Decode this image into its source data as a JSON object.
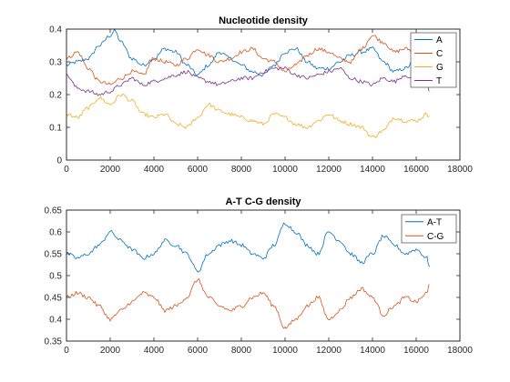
{
  "chart_data": [
    {
      "type": "line",
      "title": "Nucleotide density",
      "xlabel": "",
      "ylabel": "",
      "xlim": [
        0,
        18000
      ],
      "ylim": [
        0,
        0.4
      ],
      "x_ticks": [
        0,
        2000,
        4000,
        6000,
        8000,
        10000,
        12000,
        14000,
        16000,
        18000
      ],
      "y_ticks": [
        0,
        0.1,
        0.2,
        0.3,
        0.4
      ],
      "grid": false,
      "legend_position": "top-right",
      "series": [
        {
          "name": "A",
          "color": "#0072BD",
          "x": [
            0,
            500,
            1000,
            1500,
            2000,
            2200,
            2500,
            3000,
            3500,
            4000,
            4500,
            5000,
            5500,
            6000,
            6500,
            7000,
            7500,
            8000,
            8500,
            9000,
            9500,
            10000,
            10500,
            11000,
            11500,
            12000,
            12500,
            13000,
            13500,
            14000,
            14500,
            15000,
            15500,
            16000,
            16500,
            16600
          ],
          "y": [
            0.29,
            0.3,
            0.31,
            0.35,
            0.38,
            0.395,
            0.36,
            0.31,
            0.29,
            0.31,
            0.34,
            0.33,
            0.29,
            0.26,
            0.29,
            0.33,
            0.31,
            0.29,
            0.27,
            0.26,
            0.29,
            0.33,
            0.34,
            0.3,
            0.28,
            0.28,
            0.3,
            0.32,
            0.33,
            0.34,
            0.3,
            0.27,
            0.28,
            0.31,
            0.3,
            0.285
          ]
        },
        {
          "name": "C",
          "color": "#D95319",
          "x": [
            0,
            500,
            1000,
            1500,
            2000,
            2500,
            3000,
            3500,
            4000,
            4500,
            5000,
            5500,
            6000,
            6500,
            7000,
            7500,
            8000,
            8500,
            9000,
            9500,
            10000,
            10500,
            11000,
            11500,
            12000,
            12500,
            13000,
            13500,
            14000,
            14500,
            15000,
            15500,
            16000,
            16500,
            16600
          ],
          "y": [
            0.31,
            0.33,
            0.28,
            0.24,
            0.23,
            0.25,
            0.27,
            0.26,
            0.31,
            0.3,
            0.29,
            0.31,
            0.34,
            0.32,
            0.3,
            0.31,
            0.33,
            0.34,
            0.31,
            0.3,
            0.27,
            0.29,
            0.32,
            0.34,
            0.33,
            0.31,
            0.3,
            0.34,
            0.38,
            0.36,
            0.33,
            0.34,
            0.33,
            0.32,
            0.325
          ]
        },
        {
          "name": "G",
          "color": "#EDB120",
          "x": [
            0,
            500,
            1000,
            1500,
            2000,
            2500,
            3000,
            3500,
            4000,
            4500,
            5000,
            5500,
            6000,
            6500,
            7000,
            7500,
            8000,
            8500,
            9000,
            9500,
            10000,
            10500,
            11000,
            11500,
            12000,
            12500,
            13000,
            13500,
            14000,
            14500,
            15000,
            15500,
            16000,
            16500,
            16600
          ],
          "y": [
            0.14,
            0.13,
            0.16,
            0.19,
            0.17,
            0.2,
            0.18,
            0.14,
            0.13,
            0.14,
            0.11,
            0.1,
            0.13,
            0.17,
            0.15,
            0.14,
            0.13,
            0.12,
            0.11,
            0.14,
            0.13,
            0.11,
            0.1,
            0.12,
            0.14,
            0.12,
            0.11,
            0.1,
            0.07,
            0.09,
            0.13,
            0.12,
            0.12,
            0.14,
            0.135
          ]
        },
        {
          "name": "T",
          "color": "#7E2F8E",
          "x": [
            0,
            500,
            1000,
            1500,
            2000,
            2500,
            3000,
            3500,
            4000,
            4500,
            5000,
            5500,
            6000,
            6500,
            7000,
            7500,
            8000,
            8500,
            9000,
            9500,
            10000,
            10500,
            11000,
            11500,
            12000,
            12500,
            13000,
            13500,
            14000,
            14500,
            15000,
            15500,
            16000,
            16500,
            16600
          ],
          "y": [
            0.26,
            0.22,
            0.21,
            0.2,
            0.21,
            0.23,
            0.25,
            0.23,
            0.24,
            0.25,
            0.26,
            0.27,
            0.25,
            0.24,
            0.23,
            0.24,
            0.25,
            0.25,
            0.27,
            0.28,
            0.28,
            0.26,
            0.25,
            0.26,
            0.27,
            0.28,
            0.25,
            0.24,
            0.23,
            0.25,
            0.24,
            0.26,
            0.23,
            0.24,
            0.21
          ]
        }
      ]
    },
    {
      "type": "line",
      "title": "A-T C-G density",
      "xlabel": "",
      "ylabel": "",
      "xlim": [
        0,
        18000
      ],
      "ylim": [
        0.35,
        0.65
      ],
      "x_ticks": [
        0,
        2000,
        4000,
        6000,
        8000,
        10000,
        12000,
        14000,
        16000,
        18000
      ],
      "y_ticks": [
        0.35,
        0.4,
        0.45,
        0.5,
        0.55,
        0.6,
        0.65
      ],
      "grid": false,
      "legend_position": "top-right",
      "series": [
        {
          "name": "A-T",
          "color": "#0072BD",
          "x": [
            0,
            500,
            1000,
            1500,
            2000,
            2500,
            3000,
            3500,
            4000,
            4500,
            5000,
            5500,
            6000,
            6500,
            7000,
            7500,
            8000,
            8500,
            9000,
            9500,
            10000,
            10500,
            11000,
            11500,
            12000,
            12500,
            13000,
            13500,
            14000,
            14500,
            15000,
            15500,
            16000,
            16500,
            16600
          ],
          "y": [
            0.55,
            0.54,
            0.55,
            0.57,
            0.6,
            0.58,
            0.56,
            0.54,
            0.55,
            0.58,
            0.57,
            0.55,
            0.51,
            0.55,
            0.57,
            0.58,
            0.57,
            0.55,
            0.54,
            0.57,
            0.62,
            0.6,
            0.57,
            0.55,
            0.6,
            0.58,
            0.55,
            0.53,
            0.55,
            0.59,
            0.57,
            0.55,
            0.56,
            0.54,
            0.52
          ]
        },
        {
          "name": "C-G",
          "color": "#D95319",
          "x": [
            0,
            500,
            1000,
            1500,
            2000,
            2500,
            3000,
            3500,
            4000,
            4500,
            5000,
            5500,
            6000,
            6500,
            7000,
            7500,
            8000,
            8500,
            9000,
            9500,
            10000,
            10500,
            11000,
            11500,
            12000,
            12500,
            13000,
            13500,
            14000,
            14500,
            15000,
            15500,
            16000,
            16500,
            16600
          ],
          "y": [
            0.45,
            0.46,
            0.45,
            0.43,
            0.4,
            0.42,
            0.44,
            0.46,
            0.45,
            0.42,
            0.43,
            0.45,
            0.49,
            0.45,
            0.43,
            0.42,
            0.43,
            0.45,
            0.46,
            0.43,
            0.38,
            0.4,
            0.43,
            0.45,
            0.4,
            0.42,
            0.45,
            0.47,
            0.45,
            0.41,
            0.43,
            0.45,
            0.44,
            0.46,
            0.48
          ]
        }
      ]
    }
  ]
}
